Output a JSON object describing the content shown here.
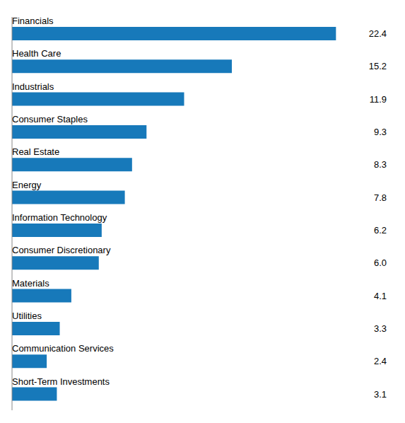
{
  "chart_data": {
    "type": "bar",
    "orientation": "horizontal",
    "categories": [
      "Financials",
      "Health Care",
      "Industrials",
      "Consumer Staples",
      "Real Estate",
      "Energy",
      "Information Technology",
      "Consumer Discretionary",
      "Materials",
      "Utilities",
      "Communication Services",
      "Short-Term Investments"
    ],
    "values": [
      22.4,
      15.2,
      11.9,
      9.3,
      8.3,
      7.8,
      6.2,
      6.0,
      4.1,
      3.3,
      2.4,
      3.1
    ],
    "value_labels": [
      "22.4",
      "15.2",
      "11.9",
      "9.3",
      "8.3",
      "7.8",
      "6.2",
      "6.0",
      "4.1",
      "3.3",
      "2.4",
      "3.1"
    ],
    "color": "#1779BA",
    "xlim": [
      0,
      26
    ],
    "data_labels": true,
    "tick_labels": false
  }
}
